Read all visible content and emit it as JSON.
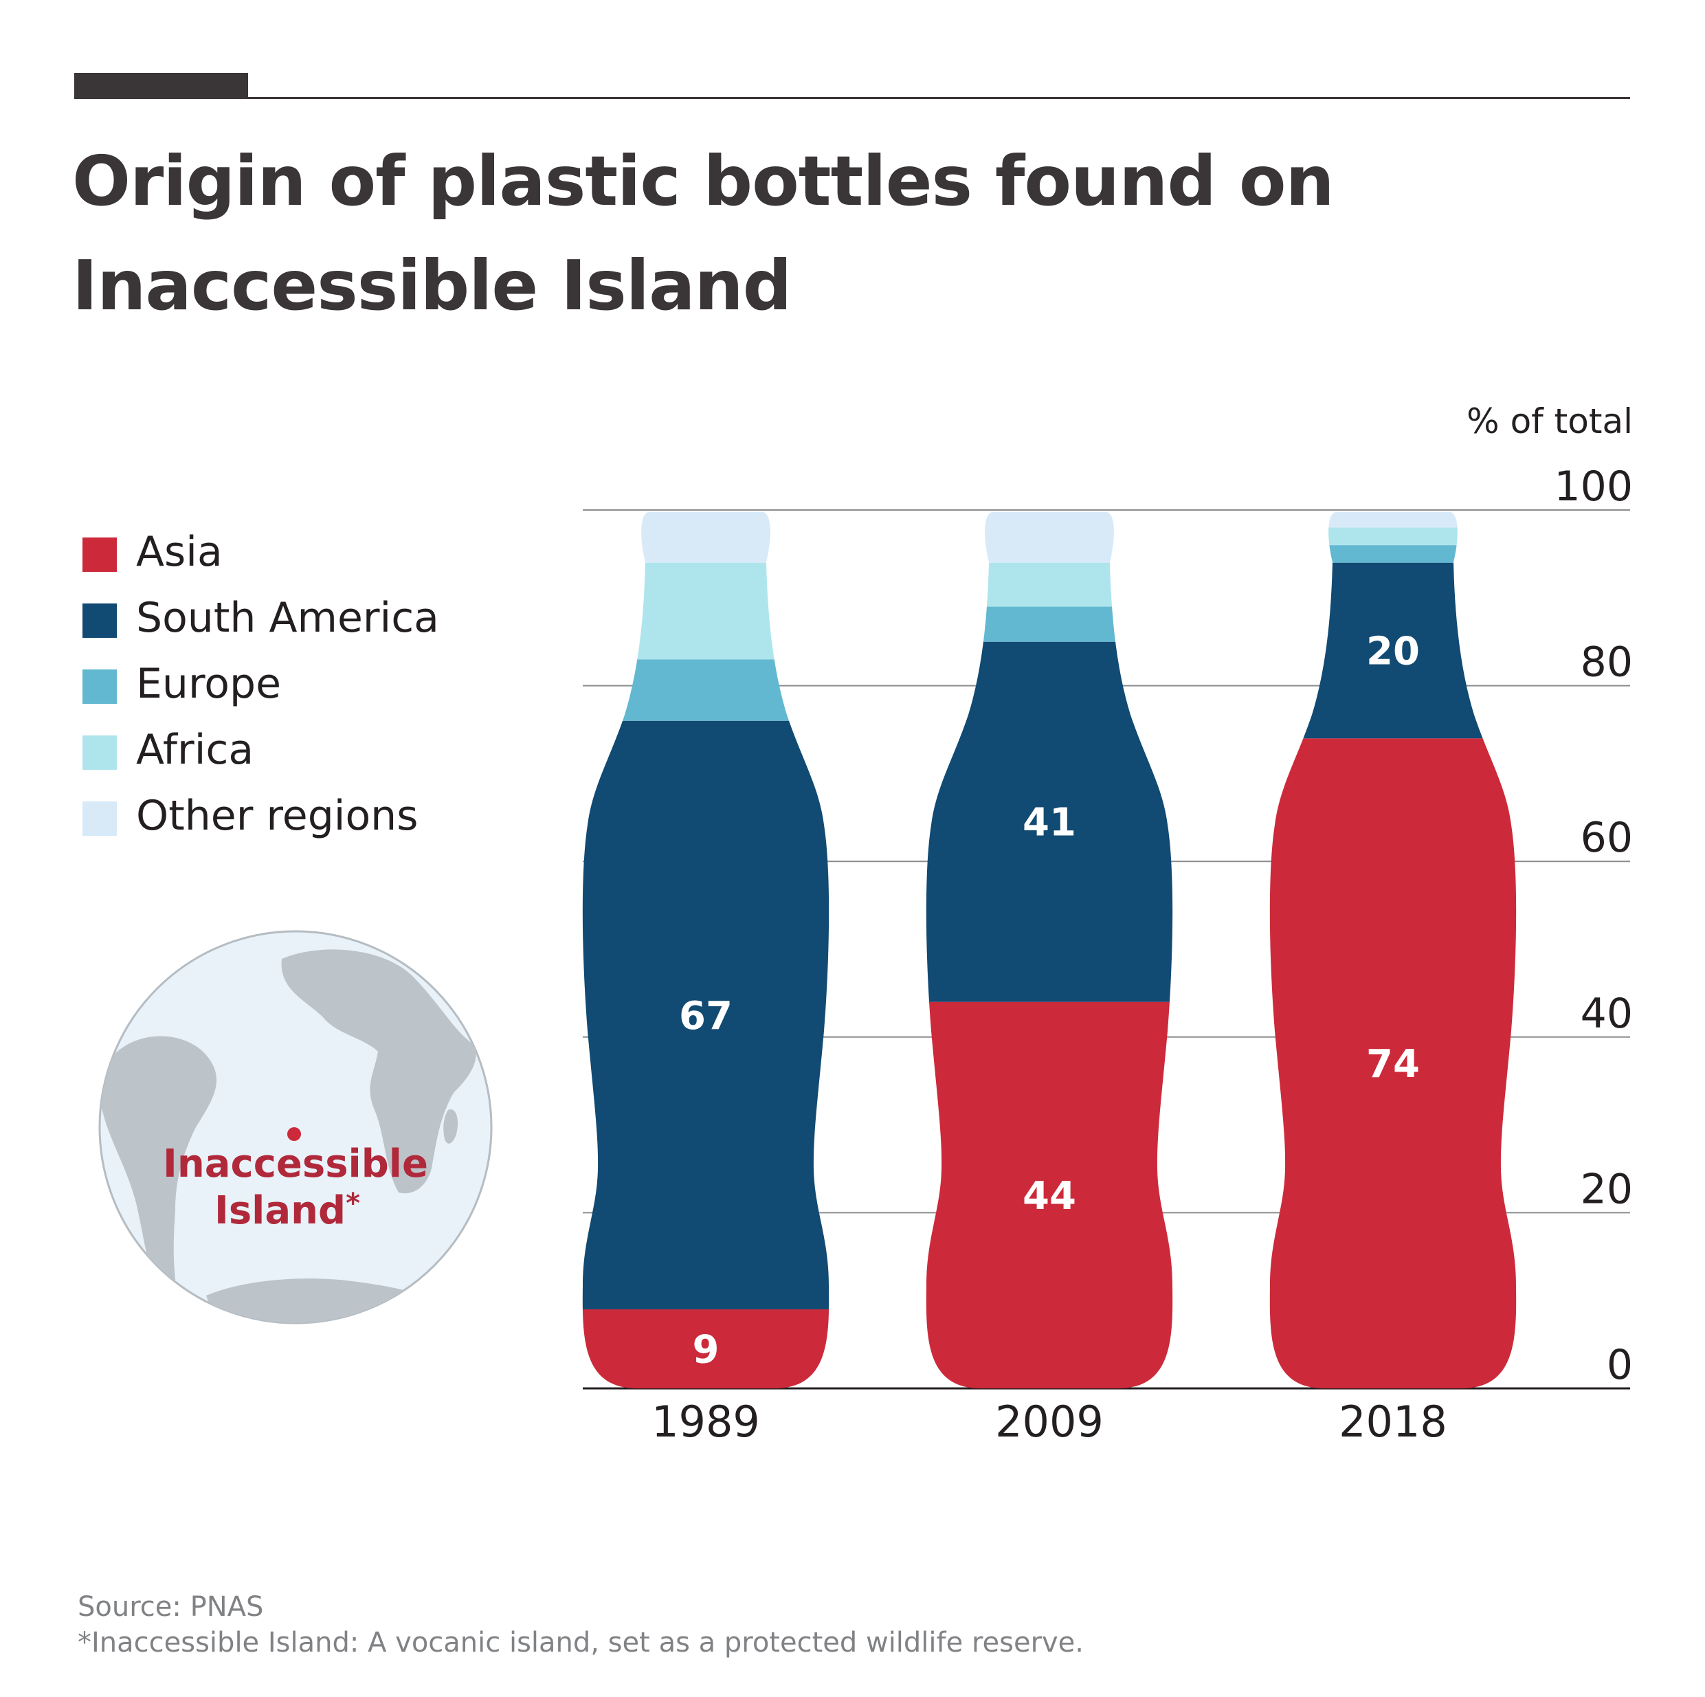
{
  "title": "Origin of plastic bottles found on Inaccessible Island",
  "legend": [
    {
      "label": "Asia",
      "color": "#cc2a3a"
    },
    {
      "label": "South America",
      "color": "#114a72"
    },
    {
      "label": "Europe",
      "color": "#62b8d0"
    },
    {
      "label": "Africa",
      "color": "#aee5ed"
    },
    {
      "label": "Other regions",
      "color": "#d8eaf8"
    }
  ],
  "map": {
    "label_line1": "Inaccessible",
    "label_line2": "Island",
    "label_mark": "*",
    "land_color": "#bcc4ca",
    "ocean_color": "#e9f2f9",
    "marker_color": "#cc2a3a"
  },
  "chart_data": {
    "type": "bar",
    "style": "stacked, bottle-shaped bars",
    "ylabel": "% of total",
    "ylim": [
      0,
      100
    ],
    "yticks": [
      0,
      20,
      40,
      60,
      80,
      100
    ],
    "y_axis_position": "right",
    "grid": true,
    "legend_position": "left",
    "categories": [
      "1989",
      "2009",
      "2018"
    ],
    "series": [
      {
        "name": "Asia",
        "color": "#cc2a3a",
        "values": [
          9,
          44,
          74
        ],
        "labeled": [
          true,
          true,
          true
        ]
      },
      {
        "name": "South America",
        "color": "#114a72",
        "values": [
          67,
          41,
          20
        ],
        "labeled": [
          true,
          true,
          true
        ]
      },
      {
        "name": "Europe",
        "color": "#62b8d0",
        "values": [
          7,
          4,
          2
        ],
        "labeled": [
          false,
          false,
          false
        ]
      },
      {
        "name": "Africa",
        "color": "#aee5ed",
        "values": [
          11,
          5,
          2
        ],
        "labeled": [
          false,
          false,
          false
        ]
      },
      {
        "name": "Other regions",
        "color": "#d8eaf8",
        "values": [
          6,
          6,
          2
        ],
        "labeled": [
          false,
          false,
          false
        ]
      }
    ]
  },
  "source": "Source: PNAS",
  "footnote": "*Inaccessible Island: A vocanic island, set as a protected wildlife reserve."
}
